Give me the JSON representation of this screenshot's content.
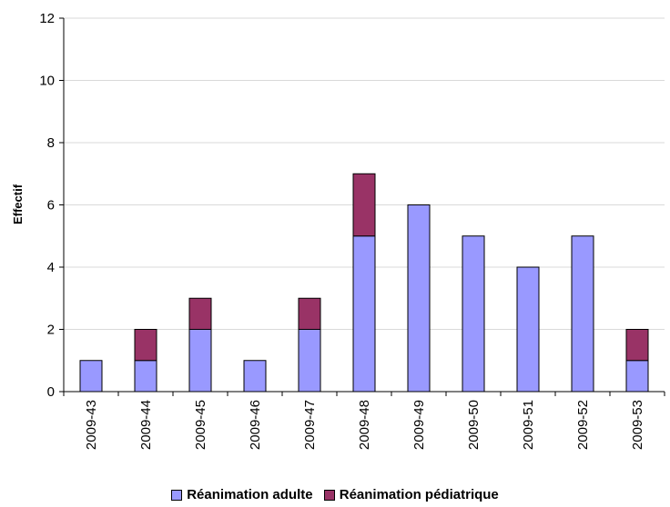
{
  "chart_data": {
    "type": "bar",
    "stacked": true,
    "title": "",
    "xlabel": "",
    "ylabel": "Effectif",
    "ylim": [
      0,
      12
    ],
    "yticks": [
      0,
      2,
      4,
      6,
      8,
      10,
      12
    ],
    "grid": true,
    "legend_position": "bottom",
    "categories": [
      "2009-43",
      "2009-44",
      "2009-45",
      "2009-46",
      "2009-47",
      "2009-48",
      "2009-49",
      "2009-50",
      "2009-51",
      "2009-52",
      "2009-53"
    ],
    "series": [
      {
        "name": "Réanimation adulte",
        "color": "#9999ff",
        "values": [
          1,
          1,
          2,
          1,
          2,
          5,
          6,
          5,
          4,
          5,
          1
        ]
      },
      {
        "name": "Réanimation pédiatrique",
        "color": "#993366",
        "values": [
          0,
          1,
          1,
          0,
          1,
          2,
          0,
          0,
          0,
          0,
          1
        ]
      }
    ]
  }
}
